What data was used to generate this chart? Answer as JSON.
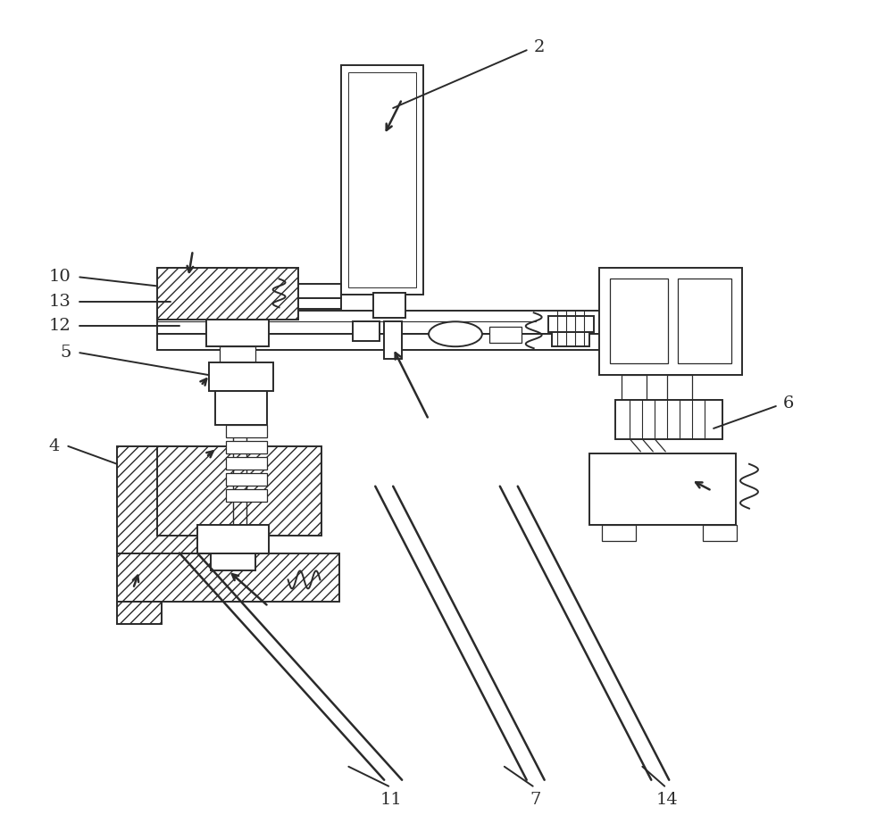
{
  "bg_color": "#ffffff",
  "lc": "#2a2a2a",
  "figsize": [
    10.0,
    9.13
  ],
  "dpi": 100,
  "label_fontsize": 14
}
